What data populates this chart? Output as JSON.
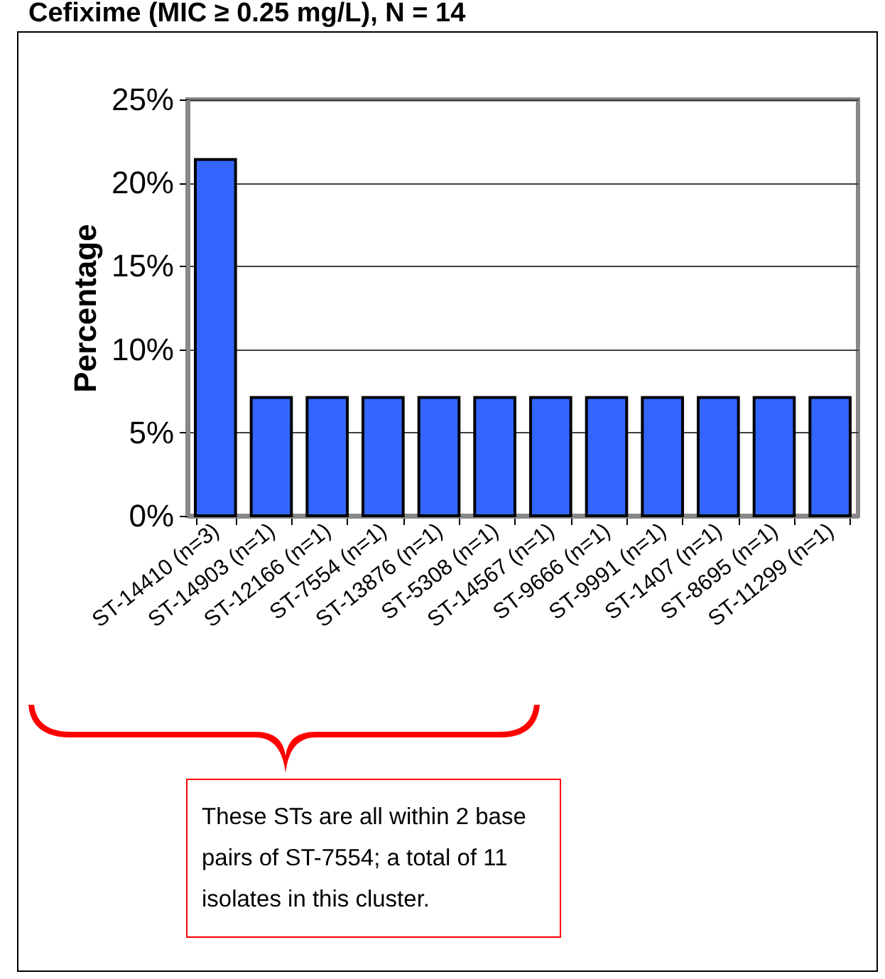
{
  "chart_data": {
    "type": "bar",
    "title": "Cefixime (MIC ≥ 0.25 mg/L), N = 14",
    "ylabel": "Percentage",
    "categories": [
      "ST-14410 (n=3)",
      "ST-14903 (n=1)",
      "ST-12166 (n=1)",
      "ST-7554 (n=1)",
      "ST-13876 (n=1)",
      "ST-5308 (n=1)",
      "ST-14567 (n=1)",
      "ST-9666 (n=1)",
      "ST-9991 (n=1)",
      "ST-1407 (n=1)",
      "ST-8695 (n=1)",
      "ST-11299 (n=1)"
    ],
    "values": [
      21.4,
      7.1,
      7.1,
      7.1,
      7.1,
      7.1,
      7.1,
      7.1,
      7.1,
      7.1,
      7.1,
      7.1
    ],
    "color": "#3366ff",
    "ylim": [
      0,
      25
    ],
    "yticks": [
      {
        "value": 0,
        "label": "0%"
      },
      {
        "value": 5,
        "label": "5%"
      },
      {
        "value": 10,
        "label": "10%"
      },
      {
        "value": 15,
        "label": "15%"
      },
      {
        "value": 20,
        "label": "20%"
      },
      {
        "value": 25,
        "label": "25%"
      }
    ],
    "grid": "y",
    "annotations": [
      "These STs are all within 2 base pairs of ST-7554; a total of 11 isolates in this cluster."
    ]
  }
}
